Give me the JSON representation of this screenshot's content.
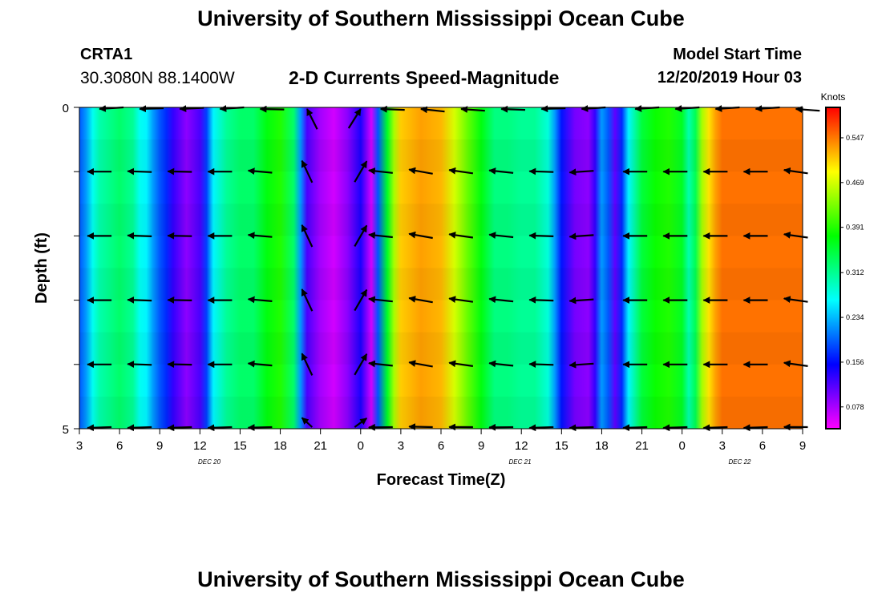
{
  "header": {
    "title": "University of Southern Mississippi Ocean Cube",
    "station_id": "CRTA1",
    "station_coords": "30.3080N 88.1400W",
    "subtitle": "2-D Currents Speed-Magnitude",
    "model_start_label": "Model Start Time",
    "model_start_value": "12/20/2019 Hour 03"
  },
  "footer": {
    "title": "University of Southern Mississippi Ocean Cube"
  },
  "chart_data": {
    "type": "heatmap",
    "title": "2-D Currents Speed-Magnitude",
    "xlabel": "Forecast Time(Z)",
    "ylabel": "Depth (ft)",
    "xlim": [
      3,
      57
    ],
    "ylim": [
      0,
      5
    ],
    "x_ticks": [
      3,
      6,
      9,
      12,
      15,
      18,
      21,
      24,
      27,
      30,
      33,
      36,
      39,
      42,
      45,
      48,
      51,
      54,
      57
    ],
    "x_tick_labels": [
      "3",
      "6",
      "9",
      "12",
      "15",
      "18",
      "21",
      "0",
      "3",
      "6",
      "9",
      "12",
      "15",
      "18",
      "21",
      "0",
      "3",
      "6",
      "9"
    ],
    "y_tick_labels": [
      "0",
      "5"
    ],
    "date_labels": [
      {
        "x": 12.7,
        "text": "DEC 20"
      },
      {
        "x": 35.9,
        "text": "DEC 21"
      },
      {
        "x": 52.3,
        "text": "DEC 22"
      }
    ],
    "colorbar": {
      "label": "Knots",
      "range": [
        0.04,
        0.6
      ],
      "tick_values": [
        0.078,
        0.156,
        0.234,
        0.312,
        0.391,
        0.469,
        0.547
      ],
      "tick_labels": [
        "0.078",
        "0.156",
        "0.234",
        "0.312",
        "0.391",
        "0.469",
        "0.547"
      ]
    },
    "speed_by_hour": [
      {
        "x": 3.0,
        "v": 0.19
      },
      {
        "x": 3.5,
        "v": 0.22
      },
      {
        "x": 4.0,
        "v": 0.27
      },
      {
        "x": 4.5,
        "v": 0.3
      },
      {
        "x": 5.0,
        "v": 0.31
      },
      {
        "x": 6.0,
        "v": 0.33
      },
      {
        "x": 7.0,
        "v": 0.31
      },
      {
        "x": 7.5,
        "v": 0.27
      },
      {
        "x": 8.0,
        "v": 0.26
      },
      {
        "x": 8.5,
        "v": 0.22
      },
      {
        "x": 9.0,
        "v": 0.19
      },
      {
        "x": 9.5,
        "v": 0.17
      },
      {
        "x": 10.0,
        "v": 0.13
      },
      {
        "x": 11.0,
        "v": 0.09
      },
      {
        "x": 12.0,
        "v": 0.12
      },
      {
        "x": 12.5,
        "v": 0.18
      },
      {
        "x": 13.0,
        "v": 0.26
      },
      {
        "x": 14.0,
        "v": 0.31
      },
      {
        "x": 15.0,
        "v": 0.33
      },
      {
        "x": 16.0,
        "v": 0.33
      },
      {
        "x": 17.0,
        "v": 0.37
      },
      {
        "x": 18.0,
        "v": 0.39
      },
      {
        "x": 19.0,
        "v": 0.33
      },
      {
        "x": 19.5,
        "v": 0.22
      },
      {
        "x": 20.0,
        "v": 0.12
      },
      {
        "x": 21.0,
        "v": 0.08
      },
      {
        "x": 22.0,
        "v": 0.06
      },
      {
        "x": 23.0,
        "v": 0.09
      },
      {
        "x": 24.0,
        "v": 0.14
      },
      {
        "x": 24.8,
        "v": 0.06
      },
      {
        "x": 25.3,
        "v": 0.19
      },
      {
        "x": 26.0,
        "v": 0.36
      },
      {
        "x": 26.5,
        "v": 0.45
      },
      {
        "x": 27.0,
        "v": 0.51
      },
      {
        "x": 28.5,
        "v": 0.53
      },
      {
        "x": 30.0,
        "v": 0.52
      },
      {
        "x": 31.0,
        "v": 0.47
      },
      {
        "x": 32.0,
        "v": 0.42
      },
      {
        "x": 33.0,
        "v": 0.37
      },
      {
        "x": 34.0,
        "v": 0.32
      },
      {
        "x": 35.0,
        "v": 0.32
      },
      {
        "x": 36.0,
        "v": 0.31
      },
      {
        "x": 37.0,
        "v": 0.31
      },
      {
        "x": 38.0,
        "v": 0.28
      },
      {
        "x": 38.5,
        "v": 0.22
      },
      {
        "x": 39.0,
        "v": 0.16
      },
      {
        "x": 40.0,
        "v": 0.1
      },
      {
        "x": 41.0,
        "v": 0.09
      },
      {
        "x": 41.5,
        "v": 0.13
      },
      {
        "x": 42.0,
        "v": 0.22
      },
      {
        "x": 42.5,
        "v": 0.19
      },
      {
        "x": 43.0,
        "v": 0.11
      },
      {
        "x": 43.5,
        "v": 0.17
      },
      {
        "x": 44.0,
        "v": 0.26
      },
      {
        "x": 45.0,
        "v": 0.35
      },
      {
        "x": 46.0,
        "v": 0.38
      },
      {
        "x": 47.0,
        "v": 0.39
      },
      {
        "x": 48.0,
        "v": 0.36
      },
      {
        "x": 48.5,
        "v": 0.3
      },
      {
        "x": 49.0,
        "v": 0.34
      },
      {
        "x": 49.5,
        "v": 0.45
      },
      {
        "x": 50.0,
        "v": 0.5
      },
      {
        "x": 50.5,
        "v": 0.53
      },
      {
        "x": 51.0,
        "v": 0.55
      }
    ],
    "vector_hours": [
      4.5,
      7.5,
      10.5,
      13.5,
      16.5,
      20.0,
      24.0,
      25.5,
      28.5,
      31.5,
      34.5,
      37.5,
      40.5,
      44.5,
      47.5,
      50.5,
      53.5,
      56.5
    ],
    "vector_depths": [
      0,
      1,
      2,
      3,
      4,
      5
    ],
    "vector_directions_deg": [
      180,
      182,
      181,
      180,
      185,
      245,
      300,
      186,
      190,
      188,
      186,
      182,
      176,
      180,
      180,
      180,
      180,
      188
    ]
  }
}
